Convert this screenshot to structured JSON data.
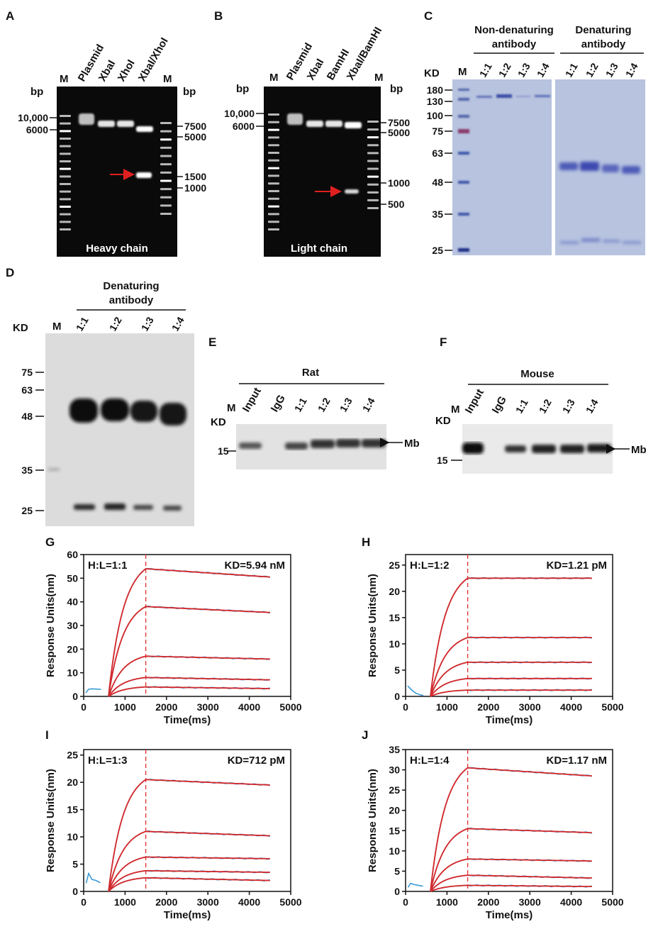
{
  "colors": {
    "fit": "#d62728",
    "data": "#3a9bd9",
    "dash": "#e0302a",
    "arrow": "#e02020",
    "gel_bg": "#0a0a0a",
    "coomassie": "#b7c3df"
  },
  "panels": {
    "A": {
      "letter": "A",
      "lanes": [
        "M",
        "Plasmid",
        "XbaI",
        "XhoI",
        "XbaI/XhoI",
        "M"
      ],
      "unit_left": "bp",
      "unit_right": "bp",
      "left_markers": [
        "10,000",
        "6000"
      ],
      "right_markers": [
        "7500",
        "5000",
        "1500",
        "1000"
      ],
      "caption": "Heavy chain"
    },
    "B": {
      "letter": "B",
      "lanes": [
        "M",
        "Plasmid",
        "XbaI",
        "BamHI",
        "XbaI/BamHI",
        "M"
      ],
      "unit_left": "bp",
      "unit_right": "bp",
      "left_markers": [
        "10,000",
        "6000"
      ],
      "right_markers": [
        "7500",
        "5000",
        "1000",
        "500"
      ],
      "caption": "Light chain"
    },
    "C": {
      "letter": "C",
      "group1": "Non-denaturing antibody",
      "group1_line1": "Non-denaturing",
      "group1_line2": "antibody",
      "group2_line1": "Denaturing",
      "group2_line2": "antibody",
      "unit": "KD",
      "marker_lane": "M",
      "ratios": [
        "1:1",
        "1:2",
        "1:3",
        "1:4"
      ],
      "markers": [
        "180",
        "130",
        "100",
        "75",
        "63",
        "48",
        "35",
        "25"
      ]
    },
    "D": {
      "letter": "D",
      "group_line1": "Denaturing",
      "group_line2": "antibody",
      "unit": "KD",
      "marker_lane": "M",
      "ratios": [
        "1:1",
        "1:2",
        "1:3",
        "1:4"
      ],
      "markers": [
        "75",
        "63",
        "48",
        "35",
        "25"
      ]
    },
    "E": {
      "letter": "E",
      "group": "Rat",
      "unit": "KD",
      "lanes": [
        "M",
        "Input",
        "IgG",
        "1:1",
        "1:2",
        "1:3",
        "1:4"
      ],
      "marker": "15",
      "band": "Mb"
    },
    "F": {
      "letter": "F",
      "group": "Mouse",
      "unit": "KD",
      "lanes": [
        "M",
        "Input",
        "IgG",
        "1:1",
        "1:2",
        "1:3",
        "1:4"
      ],
      "marker": "15",
      "band": "Mb"
    }
  },
  "chart_data": [
    {
      "panel": "G",
      "type": "line",
      "ratio_label": "H:L=1:1",
      "kd_label": "KD=5.94 nM",
      "xlabel": "Time(ms)",
      "ylabel": "Response Units(nm)",
      "xlim": [
        0,
        5000
      ],
      "ylim": [
        0,
        60
      ],
      "xticks": [
        0,
        1000,
        2000,
        3000,
        4000,
        5000
      ],
      "yticks": [
        0,
        10,
        20,
        30,
        40,
        50,
        60
      ],
      "assoc_start": 600,
      "dissoc_start": 1500,
      "end": 4500,
      "fits": [
        {
          "peak": 54,
          "end": 50.5
        },
        {
          "peak": 38,
          "end": 35.5
        },
        {
          "peak": 17,
          "end": 15.8
        },
        {
          "peak": 8,
          "end": 7
        },
        {
          "peak": 4,
          "end": 3.3
        }
      ],
      "baseline_noise": [
        [
          50,
          1.5
        ],
        [
          120,
          3
        ],
        [
          200,
          3.2
        ],
        [
          300,
          3.1
        ],
        [
          420,
          3.0
        ]
      ]
    },
    {
      "panel": "H",
      "type": "line",
      "ratio_label": "H:L=1:2",
      "kd_label": "KD=1.21 pM",
      "xlabel": "Time(ms)",
      "ylabel": "Response Units(nm)",
      "xlim": [
        0,
        5000
      ],
      "ylim": [
        0,
        27
      ],
      "xticks": [
        0,
        1000,
        2000,
        3000,
        4000,
        5000
      ],
      "yticks": [
        0,
        5,
        10,
        15,
        20,
        25
      ],
      "assoc_start": 600,
      "dissoc_start": 1500,
      "end": 4500,
      "fits": [
        {
          "peak": 22.5,
          "end": 22.5
        },
        {
          "peak": 11.2,
          "end": 11.2
        },
        {
          "peak": 6.5,
          "end": 6.5
        },
        {
          "peak": 3.4,
          "end": 3.4
        },
        {
          "peak": 1.2,
          "end": 1.2
        }
      ],
      "baseline_noise": [
        [
          50,
          2
        ],
        [
          150,
          1.2
        ],
        [
          250,
          0.6
        ],
        [
          350,
          0.3
        ],
        [
          430,
          0.2
        ]
      ]
    },
    {
      "panel": "I",
      "type": "line",
      "ratio_label": "H:L=1:3",
      "kd_label": "KD=712 pM",
      "xlabel": "Time(ms)",
      "ylabel": "Response Units(nm)",
      "xlim": [
        0,
        5000
      ],
      "ylim": [
        0,
        26
      ],
      "xticks": [
        0,
        1000,
        2000,
        3000,
        4000,
        5000
      ],
      "yticks": [
        0,
        5,
        10,
        15,
        20,
        25
      ],
      "assoc_start": 600,
      "dissoc_start": 1500,
      "end": 4500,
      "fits": [
        {
          "peak": 20.5,
          "end": 19.5
        },
        {
          "peak": 11,
          "end": 10.2
        },
        {
          "peak": 6.3,
          "end": 6.0
        },
        {
          "peak": 3.8,
          "end": 3.5
        },
        {
          "peak": 2.5,
          "end": 2.0
        }
      ],
      "baseline_noise": [
        [
          60,
          1.5
        ],
        [
          120,
          3.3
        ],
        [
          200,
          2.2
        ],
        [
          300,
          2.0
        ],
        [
          400,
          1.6
        ]
      ]
    },
    {
      "panel": "J",
      "type": "line",
      "ratio_label": "H:L=1:4",
      "kd_label": "KD=1.17 nM",
      "xlabel": "Time(ms)",
      "ylabel": "Response Units(nm)",
      "xlim": [
        0,
        5000
      ],
      "ylim": [
        0,
        35
      ],
      "xticks": [
        0,
        1000,
        2000,
        3000,
        4000,
        5000
      ],
      "yticks": [
        0,
        5,
        10,
        15,
        20,
        25,
        30,
        35
      ],
      "assoc_start": 600,
      "dissoc_start": 1500,
      "end": 4500,
      "fits": [
        {
          "peak": 30.5,
          "end": 28.5
        },
        {
          "peak": 15.5,
          "end": 14.5
        },
        {
          "peak": 8,
          "end": 7.5
        },
        {
          "peak": 4,
          "end": 3.3
        },
        {
          "peak": 1.5,
          "end": 1.2
        }
      ],
      "baseline_noise": [
        [
          60,
          1.0
        ],
        [
          120,
          2.0
        ],
        [
          200,
          1.7
        ],
        [
          300,
          1.5
        ],
        [
          420,
          1.3
        ]
      ]
    }
  ]
}
